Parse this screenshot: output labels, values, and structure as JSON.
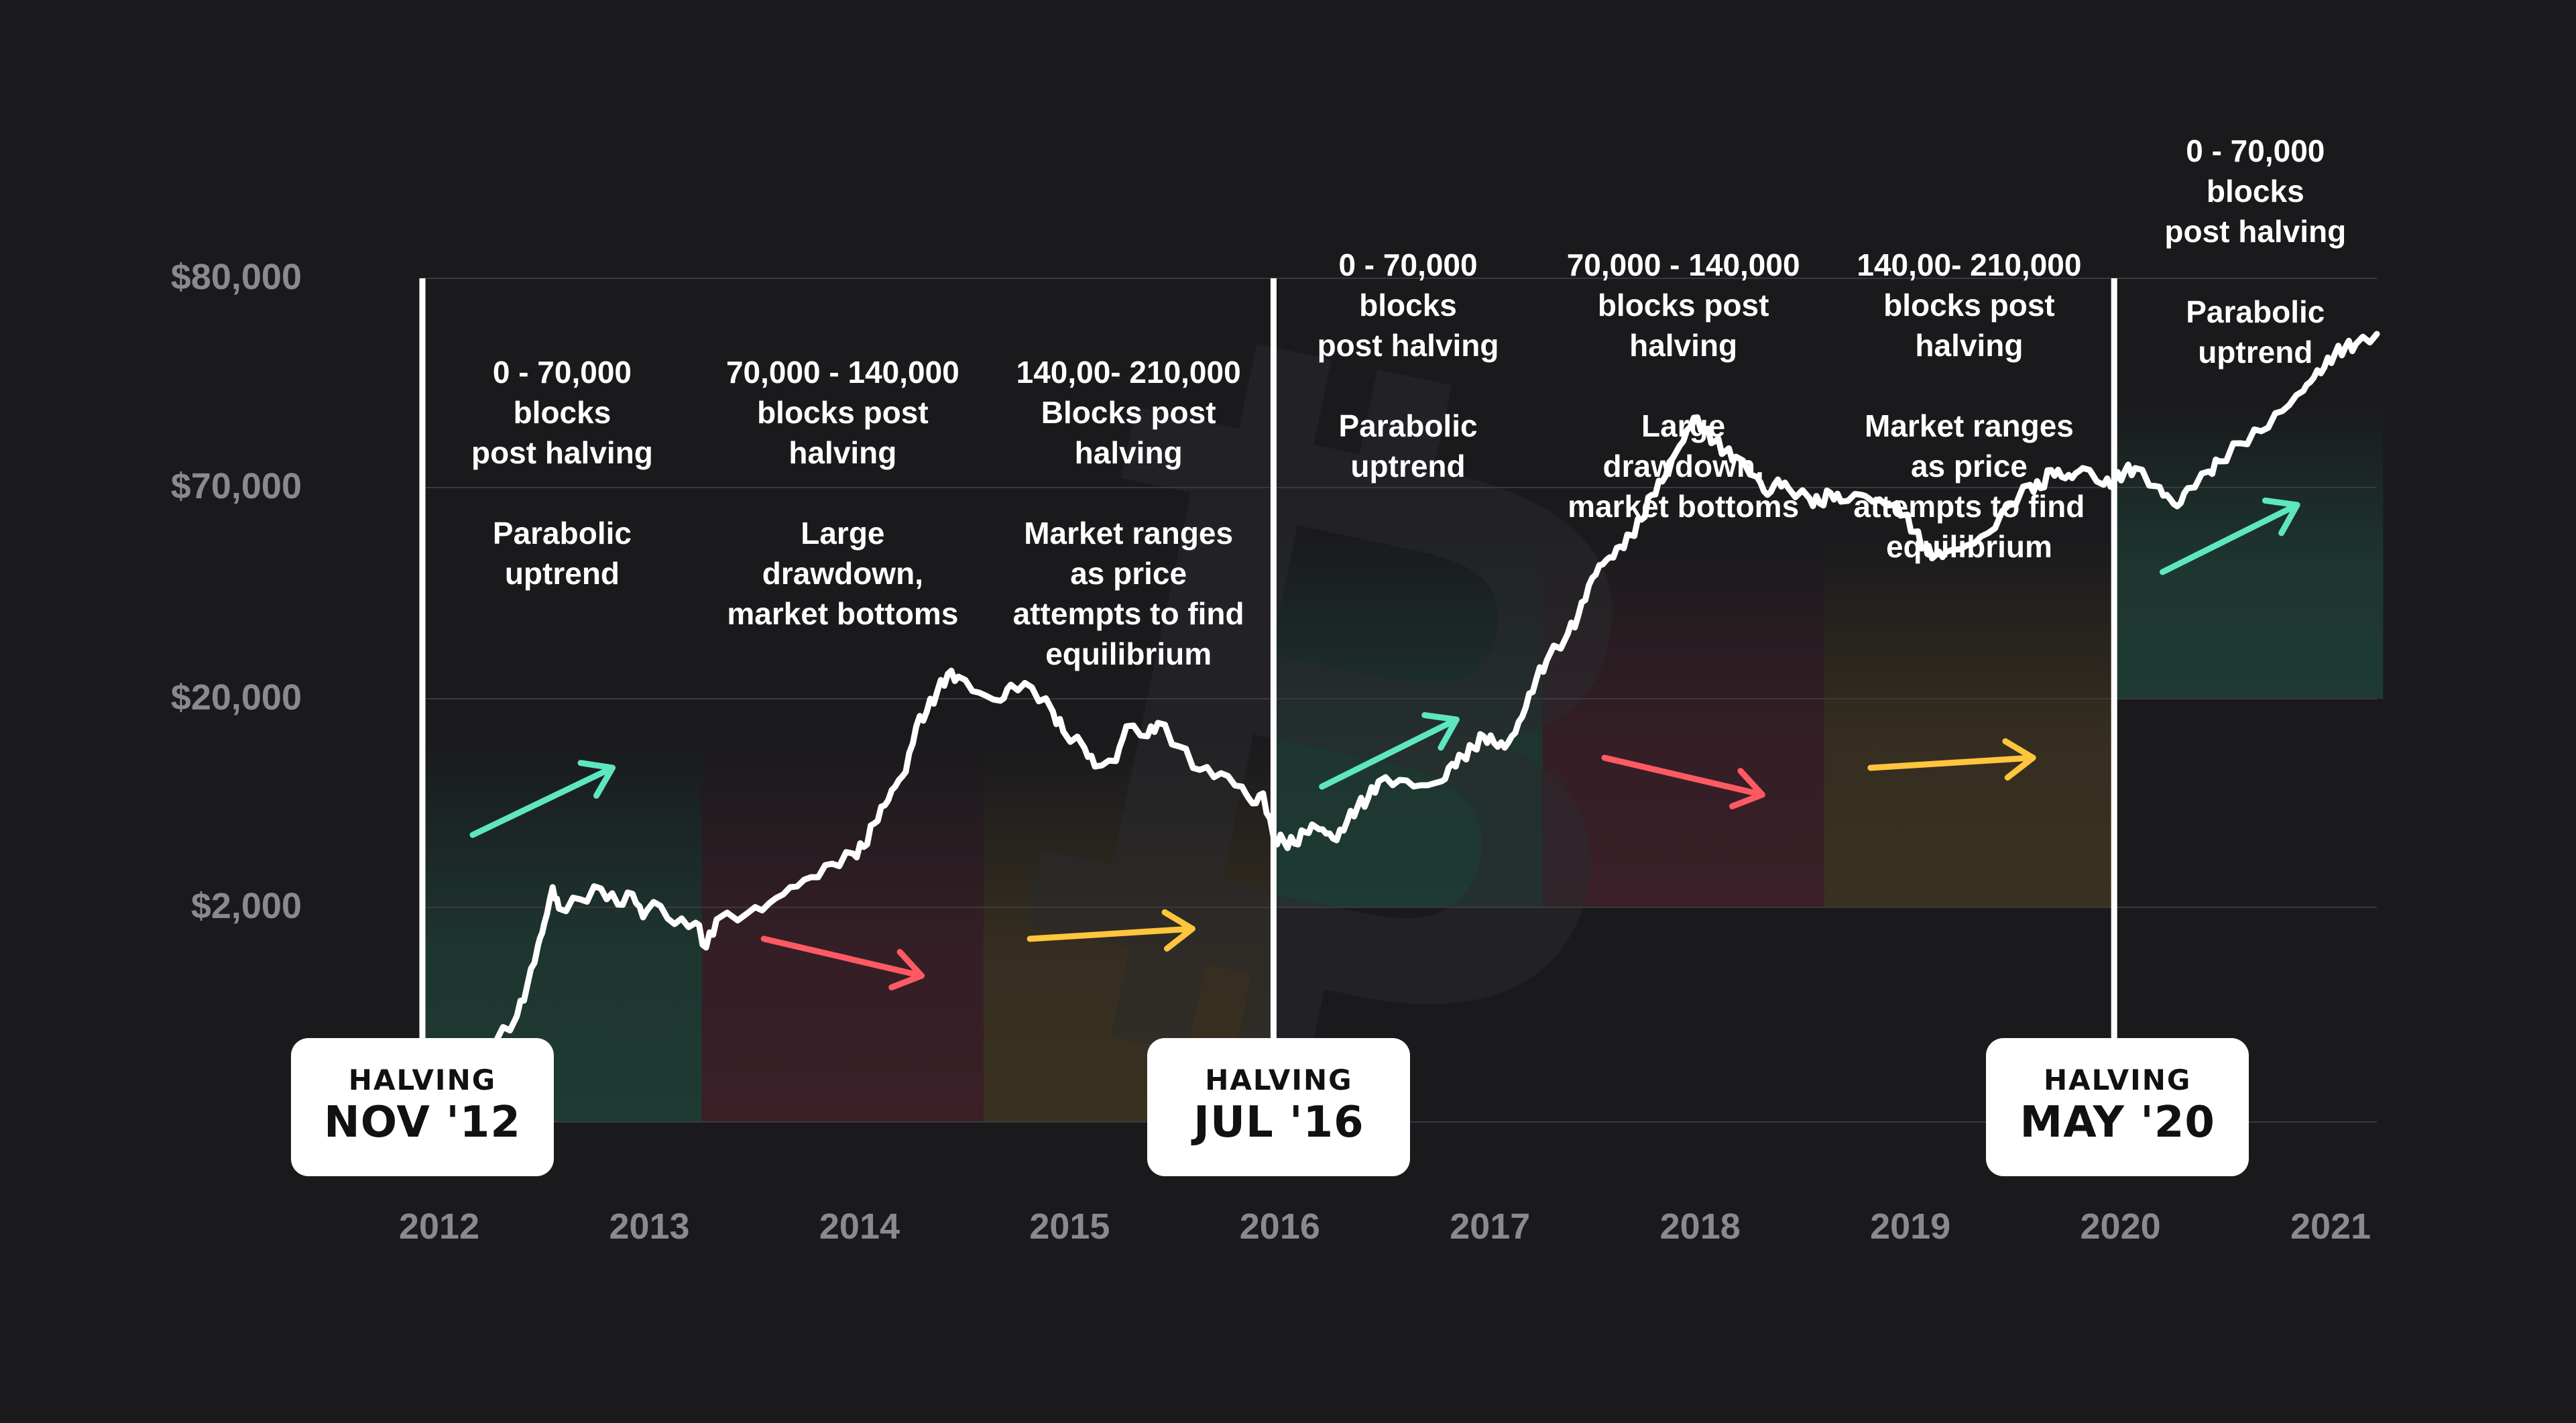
{
  "chart_data": {
    "type": "line",
    "title": "",
    "xlabel": "",
    "ylabel": "",
    "x_ticks": [
      "2012",
      "2013",
      "2014",
      "2015",
      "2016",
      "2017",
      "2018",
      "2019",
      "2020",
      "2021"
    ],
    "y_ticks": [
      "$80,000",
      "$70,000",
      "$20,000",
      "$2,000"
    ],
    "y_scale": "piecewise-log",
    "grid": "horizontal",
    "series": [
      {
        "points": [
          [
            2012.0,
            0
          ],
          [
            2012.05,
            28
          ],
          [
            2012.1,
            35
          ],
          [
            2012.2,
            75
          ],
          [
            2012.3,
            120
          ],
          [
            2012.4,
            158
          ],
          [
            2012.45,
            205
          ],
          [
            2012.5,
            263
          ],
          [
            2012.53,
            296
          ],
          [
            2012.57,
            350
          ],
          [
            2012.6,
            318
          ],
          [
            2012.7,
            332
          ],
          [
            2012.8,
            348
          ],
          [
            2012.88,
            324
          ],
          [
            2012.95,
            340
          ],
          [
            2013.0,
            305
          ],
          [
            2013.05,
            328
          ],
          [
            2013.15,
            295
          ],
          [
            2013.25,
            297
          ],
          [
            2013.3,
            260
          ],
          [
            2013.35,
            302
          ],
          [
            2013.5,
            312
          ],
          [
            2013.6,
            326
          ],
          [
            2013.7,
            350
          ],
          [
            2013.8,
            365
          ],
          [
            2013.9,
            385
          ],
          [
            2014.0,
            400
          ],
          [
            2014.05,
            410
          ],
          [
            2014.1,
            445
          ],
          [
            2014.15,
            472
          ],
          [
            2014.2,
            500
          ],
          [
            2014.25,
            522
          ],
          [
            2014.3,
            590
          ],
          [
            2014.35,
            612
          ],
          [
            2014.4,
            642
          ],
          [
            2014.45,
            668
          ],
          [
            2014.5,
            664
          ],
          [
            2014.6,
            640
          ],
          [
            2014.7,
            628
          ],
          [
            2014.75,
            652
          ],
          [
            2014.85,
            648
          ],
          [
            2014.95,
            612
          ],
          [
            2015.0,
            582
          ],
          [
            2015.1,
            558
          ],
          [
            2015.15,
            530
          ],
          [
            2015.25,
            538
          ],
          [
            2015.3,
            590
          ],
          [
            2015.4,
            575
          ],
          [
            2015.45,
            595
          ],
          [
            2015.55,
            560
          ],
          [
            2015.65,
            525
          ],
          [
            2015.75,
            520
          ],
          [
            2015.85,
            500
          ],
          [
            2015.9,
            475
          ],
          [
            2015.95,
            490
          ],
          [
            2016.0,
            425
          ],
          [
            2016.05,
            418
          ],
          [
            2016.1,
            415
          ],
          [
            2016.15,
            432
          ],
          [
            2016.2,
            440
          ],
          [
            2016.25,
            430
          ],
          [
            2016.3,
            420
          ],
          [
            2016.35,
            448
          ],
          [
            2016.4,
            470
          ],
          [
            2016.45,
            483
          ],
          [
            2016.5,
            508
          ],
          [
            2016.6,
            510
          ],
          [
            2016.7,
            502
          ],
          [
            2016.8,
            508
          ],
          [
            2016.85,
            534
          ],
          [
            2016.9,
            545
          ],
          [
            2016.95,
            558
          ],
          [
            2017.0,
            575
          ],
          [
            2017.05,
            565
          ],
          [
            2017.1,
            558
          ],
          [
            2017.15,
            580
          ],
          [
            2017.2,
            618
          ],
          [
            2017.25,
            660
          ],
          [
            2017.3,
            688
          ],
          [
            2017.4,
            728
          ],
          [
            2017.45,
            755
          ],
          [
            2017.5,
            800
          ],
          [
            2017.55,
            830
          ],
          [
            2017.6,
            842
          ],
          [
            2017.65,
            858
          ],
          [
            2017.7,
            875
          ],
          [
            2017.75,
            898
          ],
          [
            2017.8,
            935
          ],
          [
            2017.85,
            955
          ],
          [
            2017.9,
            990
          ],
          [
            2017.95,
            1015
          ],
          [
            2018.0,
            1050
          ],
          [
            2018.05,
            1030
          ],
          [
            2018.1,
            1015
          ],
          [
            2018.15,
            1000
          ],
          [
            2018.2,
            992
          ],
          [
            2018.3,
            962
          ],
          [
            2018.35,
            935
          ],
          [
            2018.4,
            958
          ],
          [
            2018.45,
            945
          ],
          [
            2018.55,
            930
          ],
          [
            2018.6,
            922
          ],
          [
            2018.65,
            938
          ],
          [
            2018.7,
            925
          ],
          [
            2018.8,
            935
          ],
          [
            2018.85,
            925
          ],
          [
            2018.95,
            920
          ],
          [
            2019.0,
            905
          ],
          [
            2019.05,
            880
          ],
          [
            2019.1,
            856
          ],
          [
            2019.15,
            845
          ],
          [
            2019.2,
            850
          ],
          [
            2019.3,
            860
          ],
          [
            2019.4,
            878
          ],
          [
            2019.5,
            920
          ],
          [
            2019.6,
            950
          ],
          [
            2019.65,
            945
          ],
          [
            2019.7,
            972
          ],
          [
            2019.75,
            962
          ],
          [
            2019.8,
            960
          ],
          [
            2019.85,
            975
          ],
          [
            2019.95,
            950
          ],
          [
            2020.0,
            955
          ],
          [
            2020.05,
            970
          ],
          [
            2020.1,
            975
          ],
          [
            2020.2,
            948
          ],
          [
            2020.25,
            935
          ],
          [
            2020.3,
            918
          ],
          [
            2020.35,
            945
          ],
          [
            2020.45,
            970
          ],
          [
            2020.5,
            985
          ],
          [
            2020.6,
            1012
          ],
          [
            2020.7,
            1030
          ],
          [
            2020.8,
            1060
          ],
          [
            2020.9,
            1090
          ],
          [
            2020.95,
            1110
          ],
          [
            2021.0,
            1125
          ],
          [
            2021.05,
            1145
          ],
          [
            2021.1,
            1155
          ],
          [
            2021.15,
            1160
          ],
          [
            2021.25,
            1175
          ]
        ]
      }
    ],
    "halvings": [
      {
        "x": 2011.95,
        "label_top": "HALVING",
        "label_main": "NOV '12"
      },
      {
        "x": 2016.0,
        "label_top": "HALVING",
        "label_main": "JUL '16"
      },
      {
        "x": 2020.0,
        "label_top": "HALVING",
        "label_main": "MAY '20"
      }
    ],
    "phases": [
      {
        "x0": 2011.95,
        "x1": 2013.28,
        "y_top": "$20,000",
        "color": "#1e3a33",
        "trend": "up"
      },
      {
        "x0": 2013.28,
        "x1": 2014.62,
        "y_top": "$20,000",
        "color": "#3a1f27",
        "trend": "down"
      },
      {
        "x0": 2014.62,
        "x1": 2016.0,
        "y_top": "$20,000",
        "color": "#3a3120",
        "trend": "flat"
      },
      {
        "x0": 2016.0,
        "x1": 2017.28,
        "y_top": "$20,000",
        "color": "#1e3a33",
        "trend": "up"
      },
      {
        "x0": 2017.28,
        "x1": 2018.62,
        "y_top": "$20,000",
        "color": "#3a1f27",
        "trend": "down"
      },
      {
        "x0": 2018.62,
        "x1": 2020.0,
        "y_top": "$20,000",
        "color": "#3a3120",
        "trend": "flat"
      },
      {
        "x0": 2020.0,
        "x1": 2021.28,
        "y_top": "$70,000",
        "color": "#1e3a33",
        "trend": "up"
      }
    ],
    "annotations": [
      {
        "blocks": "0 - 70,000\nblocks\npost halving",
        "desc": "Parabolic\nuptrend"
      },
      {
        "blocks": "70,000 - 140,000\nblocks post\nhalving",
        "desc": "Large\ndrawdown,\nmarket bottoms"
      },
      {
        "blocks": "140,00- 210,000\nBlocks post\nhalving",
        "desc": "Market ranges\nas price\nattempts to find\nequilibrium"
      },
      {
        "blocks": "0 - 70,000\nblocks\npost halving",
        "desc": "Parabolic\nuptrend"
      },
      {
        "blocks": "70,000 - 140,000\nblocks post\nhalving",
        "desc": "Large\ndrawdown,\nmarket bottoms"
      },
      {
        "blocks": "140,00- 210,000\nblocks post\nhalving",
        "desc": "Market ranges\nas price\nattempts to find\nequilibrium"
      },
      {
        "blocks": "0 - 70,000\nblocks\npost halving",
        "desc": "Parabolic\nuptrend"
      }
    ],
    "colors": {
      "background": "#1a1a1d",
      "grid": "#3a3a3e",
      "line": "#ffffff",
      "up_arrow": "#5ee6c0",
      "down_arrow": "#ff5a63",
      "flat_arrow": "#ffc53d",
      "tick_text": "#8a8a8e",
      "watermark": "#2a2a2d"
    },
    "watermark_icon": "bitcoin-logo-icon"
  }
}
